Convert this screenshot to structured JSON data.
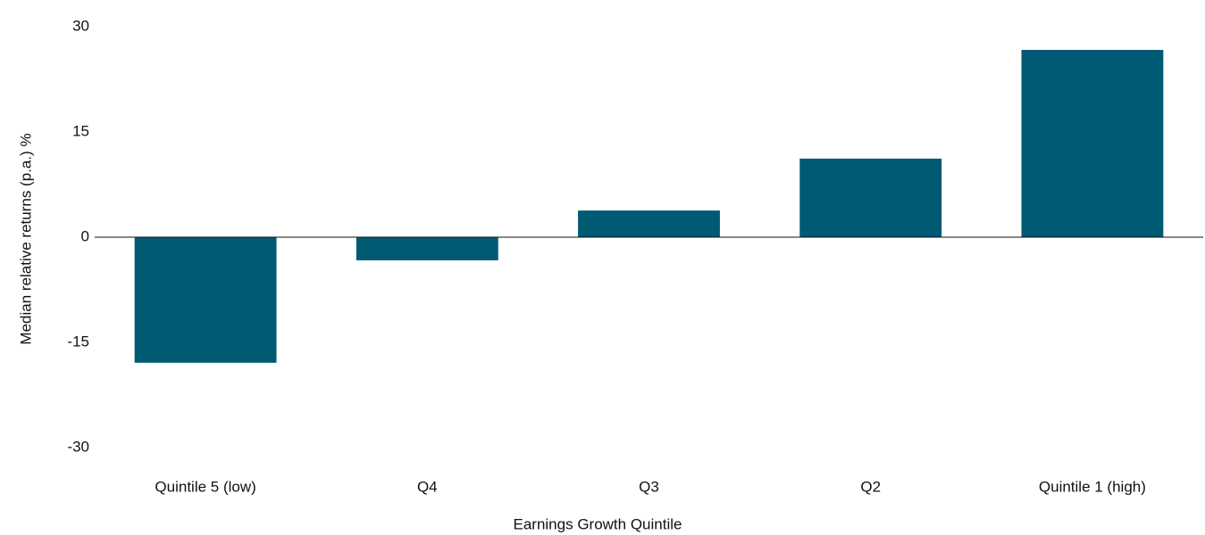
{
  "chart_data": {
    "type": "bar",
    "x_label": "Earnings Growth Quintile",
    "y_label": "Median relative returns (p.a.) %",
    "categories": [
      "Quintile 5 (low)",
      "Q4",
      "Q3",
      "Q2",
      "Quintile 1 (high)"
    ],
    "values": [
      -17.9,
      -3.3,
      3.8,
      11.2,
      26.7
    ],
    "color": "#005a73",
    "ylim": [
      -30,
      30
    ],
    "yticks": [
      -30,
      -15,
      0,
      15,
      30
    ],
    "grid": false
  }
}
